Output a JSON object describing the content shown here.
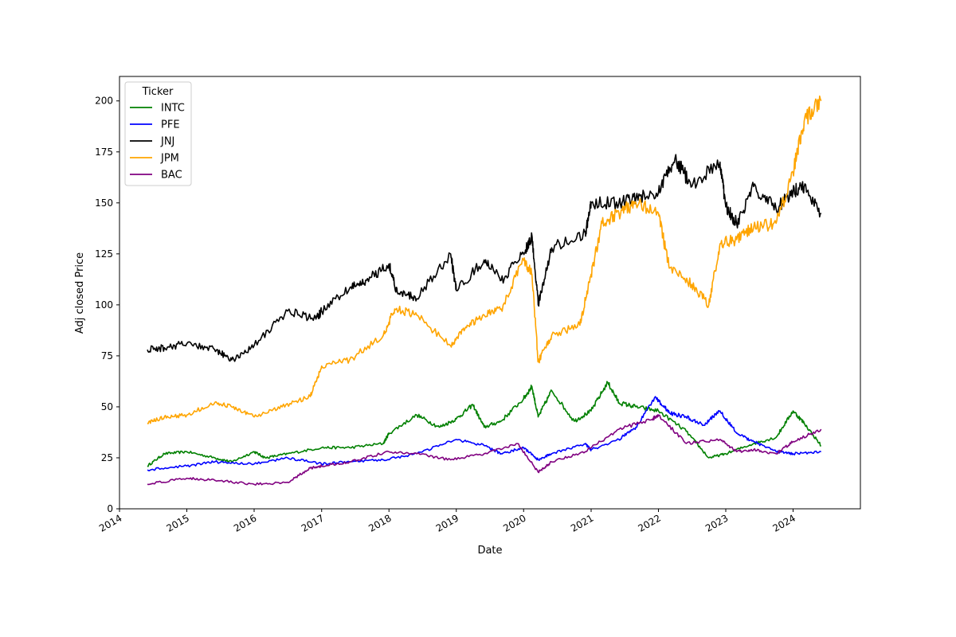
{
  "chart_data": {
    "type": "line",
    "xlabel": "Date",
    "ylabel": "Adj closed Price",
    "xlim": [
      "2014-01-01",
      "2024-12-31"
    ],
    "ylim": [
      0,
      212
    ],
    "x_ticks": [
      "2014",
      "2015",
      "2016",
      "2017",
      "2018",
      "2019",
      "2020",
      "2021",
      "2022",
      "2023",
      "2024"
    ],
    "y_ticks": [
      0,
      25,
      50,
      75,
      100,
      125,
      150,
      175,
      200
    ],
    "grid": false,
    "legend": {
      "title": "Ticker",
      "position": "top-left"
    },
    "series": [
      {
        "name": "INTC",
        "color": "#008000",
        "points": [
          [
            "2014-06-01",
            21
          ],
          [
            "2014-09-01",
            27
          ],
          [
            "2015-01-01",
            28
          ],
          [
            "2015-06-01",
            25
          ],
          [
            "2015-09-01",
            23
          ],
          [
            "2016-01-01",
            28
          ],
          [
            "2016-03-01",
            25
          ],
          [
            "2016-07-01",
            27
          ],
          [
            "2017-01-01",
            30
          ],
          [
            "2017-06-01",
            30
          ],
          [
            "2017-12-01",
            32
          ],
          [
            "2018-01-01",
            37
          ],
          [
            "2018-06-01",
            46
          ],
          [
            "2018-10-01",
            40
          ],
          [
            "2019-01-01",
            44
          ],
          [
            "2019-04-01",
            51
          ],
          [
            "2019-06-01",
            40
          ],
          [
            "2019-09-01",
            43
          ],
          [
            "2020-01-01",
            54
          ],
          [
            "2020-02-15",
            60
          ],
          [
            "2020-03-20",
            45
          ],
          [
            "2020-06-01",
            58
          ],
          [
            "2020-10-01",
            43
          ],
          [
            "2021-01-01",
            48
          ],
          [
            "2021-04-01",
            62
          ],
          [
            "2021-06-01",
            52
          ],
          [
            "2021-09-01",
            50
          ],
          [
            "2022-01-01",
            48
          ],
          [
            "2022-06-01",
            38
          ],
          [
            "2022-10-01",
            25
          ],
          [
            "2023-01-01",
            27
          ],
          [
            "2023-06-01",
            32
          ],
          [
            "2023-10-01",
            35
          ],
          [
            "2024-01-01",
            48
          ],
          [
            "2024-03-01",
            42
          ],
          [
            "2024-06-01",
            31
          ]
        ]
      },
      {
        "name": "PFE",
        "color": "#0000ff",
        "points": [
          [
            "2014-06-01",
            19
          ],
          [
            "2015-01-01",
            21
          ],
          [
            "2015-06-01",
            23
          ],
          [
            "2016-01-01",
            22
          ],
          [
            "2016-07-01",
            25
          ],
          [
            "2017-01-01",
            22
          ],
          [
            "2017-06-01",
            23
          ],
          [
            "2017-12-01",
            24
          ],
          [
            "2018-06-01",
            27
          ],
          [
            "2019-01-01",
            34
          ],
          [
            "2019-06-01",
            31
          ],
          [
            "2019-09-01",
            27
          ],
          [
            "2020-01-01",
            30
          ],
          [
            "2020-03-20",
            24
          ],
          [
            "2020-06-01",
            27
          ],
          [
            "2020-12-01",
            32
          ],
          [
            "2021-01-01",
            29
          ],
          [
            "2021-06-01",
            34
          ],
          [
            "2021-09-01",
            40
          ],
          [
            "2021-12-15",
            55
          ],
          [
            "2022-03-01",
            47
          ],
          [
            "2022-06-01",
            45
          ],
          [
            "2022-09-01",
            41
          ],
          [
            "2022-12-01",
            48
          ],
          [
            "2023-03-01",
            37
          ],
          [
            "2023-06-01",
            33
          ],
          [
            "2023-10-01",
            28
          ],
          [
            "2024-01-01",
            27
          ],
          [
            "2024-06-01",
            28
          ]
        ]
      },
      {
        "name": "JNJ",
        "color": "#000000",
        "points": [
          [
            "2014-06-01",
            78
          ],
          [
            "2014-09-01",
            79
          ],
          [
            "2015-01-01",
            81
          ],
          [
            "2015-06-01",
            78
          ],
          [
            "2015-09-01",
            73
          ],
          [
            "2016-01-01",
            80
          ],
          [
            "2016-07-01",
            97
          ],
          [
            "2016-12-01",
            93
          ],
          [
            "2017-01-01",
            97
          ],
          [
            "2017-06-01",
            108
          ],
          [
            "2017-09-01",
            112
          ],
          [
            "2018-01-01",
            120
          ],
          [
            "2018-02-15",
            106
          ],
          [
            "2018-06-01",
            103
          ],
          [
            "2018-12-01",
            125
          ],
          [
            "2019-01-01",
            107
          ],
          [
            "2019-06-01",
            122
          ],
          [
            "2019-09-01",
            112
          ],
          [
            "2020-01-01",
            125
          ],
          [
            "2020-02-15",
            134
          ],
          [
            "2020-03-20",
            100
          ],
          [
            "2020-06-01",
            128
          ],
          [
            "2020-12-01",
            135
          ],
          [
            "2021-01-01",
            150
          ],
          [
            "2021-06-01",
            150
          ],
          [
            "2021-09-01",
            152
          ],
          [
            "2022-01-01",
            155
          ],
          [
            "2022-04-01",
            172
          ],
          [
            "2022-07-01",
            158
          ],
          [
            "2022-12-01",
            170
          ],
          [
            "2023-01-01",
            148
          ],
          [
            "2023-03-01",
            140
          ],
          [
            "2023-06-01",
            158
          ],
          [
            "2023-10-01",
            147
          ],
          [
            "2024-01-01",
            156
          ],
          [
            "2024-03-01",
            158
          ],
          [
            "2024-06-01",
            145
          ]
        ]
      },
      {
        "name": "JPM",
        "color": "#ffa500",
        "points": [
          [
            "2014-06-01",
            42
          ],
          [
            "2014-09-01",
            45
          ],
          [
            "2015-01-01",
            46
          ],
          [
            "2015-06-01",
            52
          ],
          [
            "2015-09-01",
            50
          ],
          [
            "2016-01-01",
            45
          ],
          [
            "2016-06-01",
            50
          ],
          [
            "2016-11-01",
            55
          ],
          [
            "2017-01-01",
            70
          ],
          [
            "2017-06-01",
            73
          ],
          [
            "2017-12-01",
            85
          ],
          [
            "2018-02-01",
            98
          ],
          [
            "2018-06-01",
            95
          ],
          [
            "2018-12-01",
            80
          ],
          [
            "2019-03-01",
            90
          ],
          [
            "2019-06-01",
            95
          ],
          [
            "2019-09-01",
            98
          ],
          [
            "2020-01-01",
            122
          ],
          [
            "2020-02-15",
            115
          ],
          [
            "2020-03-20",
            72
          ],
          [
            "2020-06-01",
            85
          ],
          [
            "2020-11-01",
            90
          ],
          [
            "2021-01-01",
            115
          ],
          [
            "2021-03-01",
            140
          ],
          [
            "2021-06-01",
            145
          ],
          [
            "2021-09-01",
            150
          ],
          [
            "2022-01-01",
            145
          ],
          [
            "2022-03-01",
            118
          ],
          [
            "2022-07-01",
            110
          ],
          [
            "2022-10-01",
            100
          ],
          [
            "2022-12-01",
            130
          ],
          [
            "2023-03-01",
            132
          ],
          [
            "2023-06-01",
            138
          ],
          [
            "2023-10-01",
            140
          ],
          [
            "2024-01-01",
            165
          ],
          [
            "2024-03-01",
            190
          ],
          [
            "2024-06-01",
            200
          ]
        ]
      },
      {
        "name": "BAC",
        "color": "#800080",
        "points": [
          [
            "2014-06-01",
            12
          ],
          [
            "2015-01-01",
            15
          ],
          [
            "2015-06-01",
            14
          ],
          [
            "2016-01-01",
            12
          ],
          [
            "2016-07-01",
            13
          ],
          [
            "2016-11-01",
            20
          ],
          [
            "2017-01-01",
            21
          ],
          [
            "2017-06-01",
            23
          ],
          [
            "2018-01-01",
            28
          ],
          [
            "2018-06-01",
            27
          ],
          [
            "2018-12-01",
            24
          ],
          [
            "2019-06-01",
            27
          ],
          [
            "2019-12-01",
            32
          ],
          [
            "2020-03-20",
            18
          ],
          [
            "2020-06-01",
            23
          ],
          [
            "2020-12-01",
            28
          ],
          [
            "2021-06-01",
            39
          ],
          [
            "2021-12-01",
            44
          ],
          [
            "2022-01-01",
            46
          ],
          [
            "2022-06-01",
            32
          ],
          [
            "2022-12-01",
            34
          ],
          [
            "2023-03-01",
            28
          ],
          [
            "2023-06-01",
            29
          ],
          [
            "2023-10-01",
            27
          ],
          [
            "2024-01-01",
            33
          ],
          [
            "2024-06-01",
            39
          ]
        ]
      }
    ]
  }
}
